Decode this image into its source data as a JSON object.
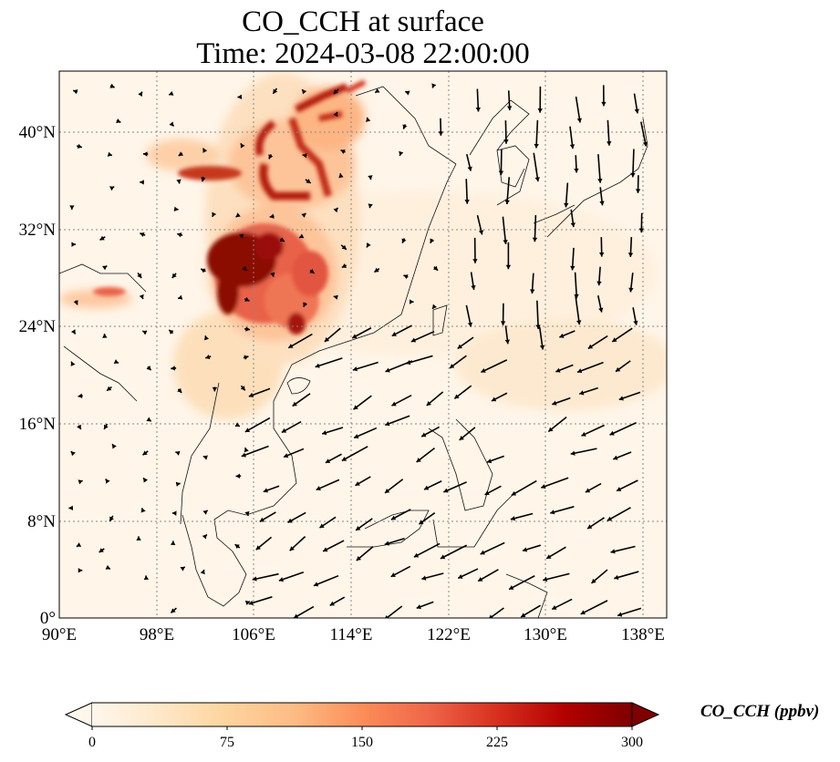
{
  "title": "CO_CCH at surface",
  "subtitle": "Time: 2024-03-08 22:00:00",
  "map": {
    "lon_ticks": [
      "90°E",
      "98°E",
      "106°E",
      "114°E",
      "122°E",
      "130°E",
      "138°E"
    ],
    "lat_ticks": [
      "0°",
      "8°N",
      "16°N",
      "24°N",
      "32°N",
      "40°N"
    ],
    "lon_range": [
      90,
      140
    ],
    "lat_range": [
      0,
      45
    ],
    "gridlines": true
  },
  "colorbar": {
    "label": "CO_CCH (ppbv)",
    "ticks": [
      "0",
      "75",
      "150",
      "225",
      "300"
    ],
    "min": 0,
    "max": 300,
    "extend": "both",
    "colormap": "OrRd",
    "colors": [
      "#fff7ec",
      "#fee8c8",
      "#fdd49e",
      "#fdbb84",
      "#fc8d59",
      "#ef6548",
      "#d7301f",
      "#b30000",
      "#7f0000"
    ]
  }
}
